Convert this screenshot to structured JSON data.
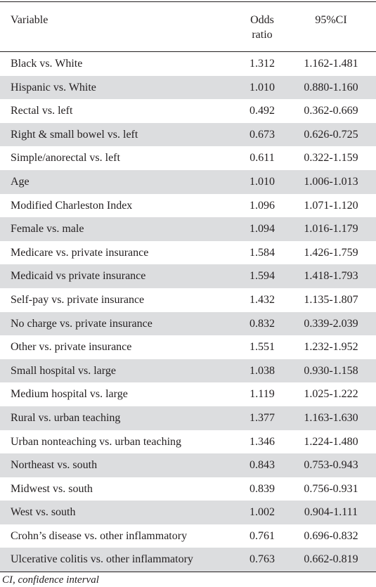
{
  "table": {
    "headers": {
      "variable": "Variable",
      "odds_ratio_line1": "Odds",
      "odds_ratio_line2": "ratio",
      "ci": "95%CI"
    },
    "rows": [
      {
        "variable": "Black vs. White",
        "odds_ratio": "1.312",
        "ci": "1.162-1.481"
      },
      {
        "variable": "Hispanic vs. White",
        "odds_ratio": "1.010",
        "ci": "0.880-1.160"
      },
      {
        "variable": "Rectal vs. left",
        "odds_ratio": "0.492",
        "ci": "0.362-0.669"
      },
      {
        "variable": "Right & small bowel vs. left",
        "odds_ratio": "0.673",
        "ci": "0.626-0.725"
      },
      {
        "variable": "Simple/anorectal vs. left",
        "odds_ratio": "0.611",
        "ci": "0.322-1.159"
      },
      {
        "variable": "Age",
        "odds_ratio": "1.010",
        "ci": "1.006-1.013"
      },
      {
        "variable": "Modified Charleston Index",
        "odds_ratio": "1.096",
        "ci": "1.071-1.120"
      },
      {
        "variable": "Female vs. male",
        "odds_ratio": "1.094",
        "ci": "1.016-1.179"
      },
      {
        "variable": "Medicare vs. private insurance",
        "odds_ratio": "1.584",
        "ci": "1.426-1.759"
      },
      {
        "variable": "Medicaid vs private insurance",
        "odds_ratio": "1.594",
        "ci": "1.418-1.793"
      },
      {
        "variable": "Self-pay vs. private insurance",
        "odds_ratio": "1.432",
        "ci": "1.135-1.807"
      },
      {
        "variable": "No charge vs. private insurance",
        "odds_ratio": "0.832",
        "ci": "0.339-2.039"
      },
      {
        "variable": "Other vs. private insurance",
        "odds_ratio": "1.551",
        "ci": "1.232-1.952"
      },
      {
        "variable": "Small hospital vs. large",
        "odds_ratio": "1.038",
        "ci": "0.930-1.158"
      },
      {
        "variable": "Medium hospital vs. large",
        "odds_ratio": "1.119",
        "ci": "1.025-1.222"
      },
      {
        "variable": "Rural vs. urban teaching",
        "odds_ratio": "1.377",
        "ci": "1.163-1.630"
      },
      {
        "variable": "Urban nonteaching vs. urban teaching",
        "odds_ratio": "1.346",
        "ci": "1.224-1.480"
      },
      {
        "variable": "Northeast vs. south",
        "odds_ratio": "0.843",
        "ci": "0.753-0.943"
      },
      {
        "variable": "Midwest vs. south",
        "odds_ratio": "0.839",
        "ci": "0.756-0.931"
      },
      {
        "variable": "West vs. south",
        "odds_ratio": "1.002",
        "ci": "0.904-1.111"
      },
      {
        "variable": "Crohn’s disease vs. other inflammatory",
        "odds_ratio": "0.761",
        "ci": "0.696-0.832"
      },
      {
        "variable": "Ulcerative colitis vs. other inflammatory",
        "odds_ratio": "0.763",
        "ci": "0.662-0.819"
      }
    ],
    "footnote": "CI, confidence interval"
  }
}
